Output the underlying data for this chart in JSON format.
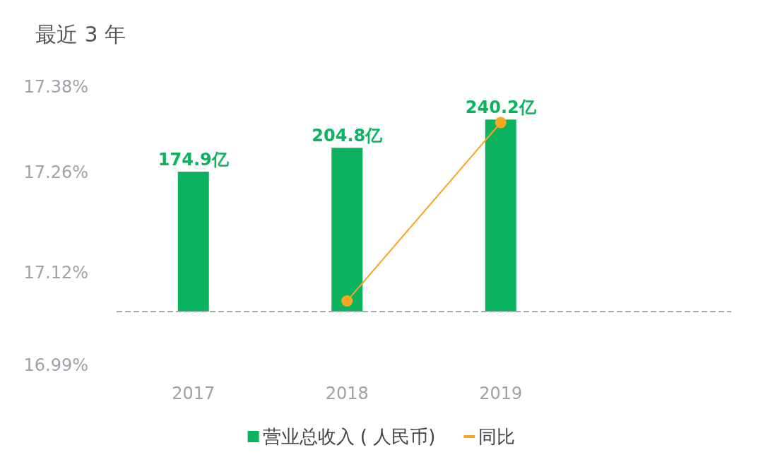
{
  "chart_data": {
    "type": "bar",
    "title": "最近 3 年",
    "categories": [
      "2017",
      "2018",
      "2019",
      null
    ],
    "series": [
      {
        "name": "营业总收入 ( 人民币)",
        "axis": "y2",
        "color": "#0bb35f",
        "values": [
          174.9,
          204.8,
          240.2,
          null
        ],
        "value_labels": [
          "174.9亿",
          "204.8亿",
          "240.2亿",
          null
        ]
      },
      {
        "name": "同比",
        "type": "line",
        "color": "#f5a623",
        "values": [
          null,
          17.08,
          17.33,
          null
        ]
      }
    ],
    "ylim": [
      16.99,
      17.38
    ],
    "yticks": [
      {
        "value": 16.99,
        "label": "16.99%"
      },
      {
        "value": 17.12,
        "label": "17.12%"
      },
      {
        "value": 17.26,
        "label": "17.26%"
      },
      {
        "value": 17.38,
        "label": "17.38%"
      }
    ],
    "ref_lines": [
      {
        "axis": "y2",
        "value": 0,
        "color": "#aaaaaa",
        "line_style": "dashed"
      }
    ],
    "marker": "circle",
    "grid": false,
    "legend": "bottom"
  }
}
